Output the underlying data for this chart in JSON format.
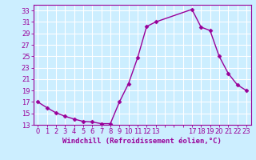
{
  "x": [
    0,
    1,
    2,
    3,
    4,
    5,
    6,
    7,
    8,
    9,
    10,
    11,
    12,
    13,
    17,
    18,
    19,
    20,
    21,
    22,
    23
  ],
  "y": [
    17.0,
    16.0,
    15.1,
    14.5,
    14.0,
    13.6,
    13.5,
    13.2,
    13.2,
    17.0,
    20.2,
    24.7,
    30.2,
    31.0,
    33.2,
    30.1,
    29.5,
    25.0,
    22.0,
    20.0,
    19.0
  ],
  "line_color": "#990099",
  "marker": "D",
  "markersize": 2.5,
  "linewidth": 1.0,
  "bg_color": "#cceeff",
  "grid_color": "#ffffff",
  "xlabel": "Windchill (Refroidissement éolien,°C)",
  "xlabel_color": "#990099",
  "xlabel_fontsize": 6.5,
  "ylim": [
    13,
    34
  ],
  "xlim": [
    -0.5,
    23.5
  ],
  "yticks": [
    13,
    15,
    17,
    19,
    21,
    23,
    25,
    27,
    29,
    31,
    33
  ],
  "xtick_labels": [
    "0",
    "1",
    "2",
    "3",
    "4",
    "5",
    "6",
    "7",
    "8",
    "9",
    "10",
    "11",
    "12",
    "13",
    "",
    "",
    "",
    "17",
    "18",
    "19",
    "20",
    "21",
    "22",
    "23"
  ],
  "tick_color": "#990099",
  "tick_fontsize": 6.0
}
